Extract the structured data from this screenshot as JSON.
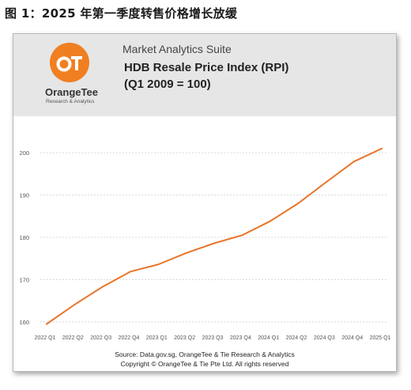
{
  "figure_title": "图 1：2025 年第一季度转售价格增长放缓",
  "banner": {
    "suite": "Market Analytics Suite",
    "logo_name": "OrangeTee",
    "logo_tagline": "Research & Analytics",
    "accent_color": "#f07f22"
  },
  "footer": {
    "source": "Source: Data.gov.sg, OrangeTee & Tie Research & Analytics",
    "copyright": "Copyright © OrangeTee & Tie Pte Ltd. All rights reserved"
  },
  "chart_data": {
    "type": "line",
    "title": "HDB Resale Price Index (RPI)",
    "subtitle": "(Q1 2009 = 100)",
    "xlabel": "",
    "ylabel": "",
    "categories": [
      "2022 Q1",
      "2022 Q2",
      "2022 Q3",
      "2022 Q4",
      "2023 Q1",
      "2023 Q2",
      "2023 Q3",
      "2023 Q4",
      "2024 Q1",
      "2024 Q2",
      "2024 Q3",
      "2024 Q4",
      "2025 Q1"
    ],
    "series": [
      {
        "values": [
          159.5,
          164.1,
          168.3,
          171.9,
          173.6,
          176.3,
          178.6,
          180.5,
          183.8,
          188.0,
          193.0,
          197.9,
          201.0
        ],
        "color": "#e8742a"
      }
    ],
    "ylim": [
      157,
      206
    ],
    "yticks": [
      160,
      170,
      180,
      190,
      200
    ],
    "grid": true,
    "legend": "none"
  }
}
